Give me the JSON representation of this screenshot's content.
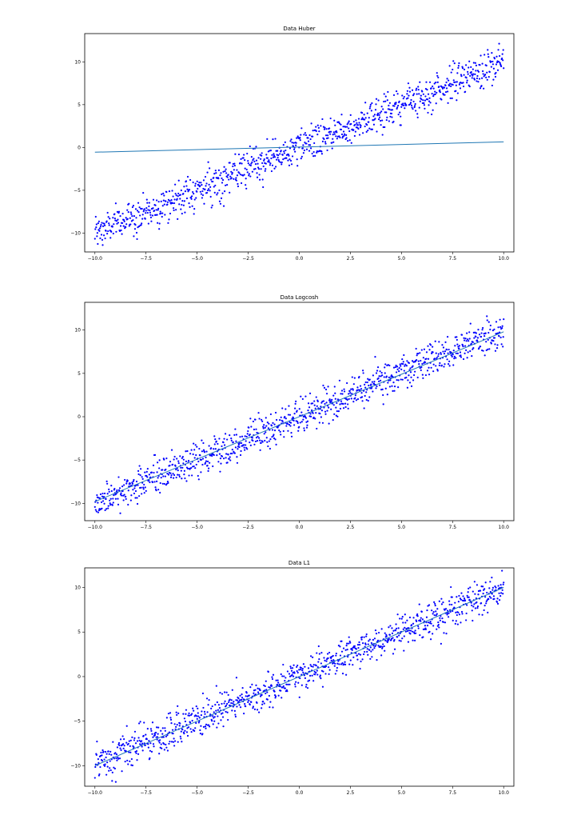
{
  "colors": {
    "points": "#0000ff",
    "fit_line": "#1f77b4",
    "axes": "#000000",
    "background": "#ffffff"
  },
  "chart_data": [
    {
      "type": "scatter",
      "title": "Data Huber",
      "xlabel": "",
      "ylabel": "",
      "xlim": [
        -10.5,
        10.5
      ],
      "ylim": [
        -12.2,
        13.3
      ],
      "xticks": [
        "−10.0",
        "−7.5",
        "−5.0",
        "−2.5",
        "0.0",
        "2.5",
        "5.0",
        "7.5",
        "10.0"
      ],
      "xtick_values": [
        -10,
        -7.5,
        -5,
        -2.5,
        0,
        2.5,
        5,
        7.5,
        10
      ],
      "yticks": [
        "−10",
        "−5",
        "0",
        "5",
        "10"
      ],
      "ytick_values": [
        -10,
        -5,
        0,
        5,
        10
      ],
      "grid": false,
      "scatter": {
        "x_range": [
          -10,
          10
        ],
        "slope": 1.0,
        "intercept": 0,
        "noise_sd": 1.0,
        "n": 1000
      },
      "line": {
        "x": [
          -10,
          10
        ],
        "y": [
          -0.55,
          0.65
        ]
      }
    },
    {
      "type": "scatter",
      "title": "Data Logcosh",
      "xlabel": "",
      "ylabel": "",
      "xlim": [
        -10.5,
        10.5
      ],
      "ylim": [
        -12.0,
        13.2
      ],
      "xticks": [
        "−10.0",
        "−7.5",
        "−5.0",
        "−2.5",
        "0.0",
        "2.5",
        "5.0",
        "7.5",
        "10.0"
      ],
      "xtick_values": [
        -10,
        -7.5,
        -5,
        -2.5,
        0,
        2.5,
        5,
        7.5,
        10
      ],
      "yticks": [
        "−10",
        "−5",
        "0",
        "5",
        "10"
      ],
      "ytick_values": [
        -10,
        -5,
        0,
        5,
        10
      ],
      "grid": false,
      "scatter": {
        "x_range": [
          -10,
          10
        ],
        "slope": 1.0,
        "intercept": 0,
        "noise_sd": 1.0,
        "n": 1000
      },
      "line": {
        "x": [
          -10,
          10
        ],
        "y": [
          -9.8,
          9.8
        ]
      }
    },
    {
      "type": "scatter",
      "title": "Data L1",
      "xlabel": "",
      "ylabel": "",
      "xlim": [
        -10.5,
        10.5
      ],
      "ylim": [
        -12.3,
        12.2
      ],
      "xticks": [
        "−10.0",
        "−7.5",
        "−5.0",
        "−2.5",
        "0.0",
        "2.5",
        "5.0",
        "7.5",
        "10.0"
      ],
      "xtick_values": [
        -10,
        -7.5,
        -5,
        -2.5,
        0,
        2.5,
        5,
        7.5,
        10
      ],
      "yticks": [
        "−10",
        "−5",
        "0",
        "5",
        "10"
      ],
      "ytick_values": [
        -10,
        -5,
        0,
        5,
        10
      ],
      "grid": false,
      "scatter": {
        "x_range": [
          -10,
          10
        ],
        "slope": 1.0,
        "intercept": 0,
        "noise_sd": 1.0,
        "n": 1000
      },
      "line": {
        "x": [
          -10,
          10
        ],
        "y": [
          -10.0,
          10.0
        ]
      }
    }
  ]
}
